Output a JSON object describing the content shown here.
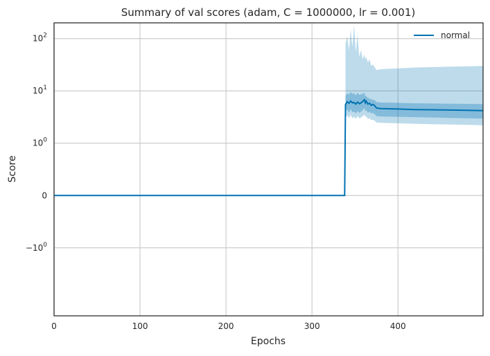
{
  "chart_data": {
    "type": "line",
    "title": "Summary of val scores (adam, C = 1000000, lr = 0.001)",
    "xlabel": "Epochs",
    "ylabel": "Score",
    "xlim": [
      0,
      499
    ],
    "y_scale": "symlog",
    "y_linthresh": 1,
    "ylim": [
      -20,
      200
    ],
    "x_ticks": [
      0,
      100,
      200,
      300,
      400
    ],
    "y_ticks": [
      {
        "value": 100,
        "label": "10",
        "sup": "2"
      },
      {
        "value": 10,
        "label": "10",
        "sup": "1"
      },
      {
        "value": 1,
        "label": "10",
        "sup": "0"
      },
      {
        "value": 0,
        "label": "0",
        "sup": ""
      },
      {
        "value": -1,
        "label": "−10",
        "sup": "0"
      }
    ],
    "grid": true,
    "legend": {
      "position": "top-right",
      "entries": [
        "normal"
      ]
    },
    "series": [
      {
        "name": "normal",
        "color": "#0072B2",
        "band_color": "#0072B2",
        "x": [
          0,
          338,
          339,
          341,
          343,
          345,
          347,
          349,
          351,
          353,
          355,
          357,
          359,
          361,
          362,
          363,
          365,
          367,
          369,
          371,
          373,
          375,
          380,
          400,
          420,
          440,
          460,
          480,
          499
        ],
        "y": [
          0,
          0,
          5.5,
          6.2,
          5.8,
          6.4,
          5.9,
          6.0,
          5.6,
          6.1,
          5.7,
          5.9,
          6.3,
          6.8,
          5.9,
          6.4,
          5.6,
          5.8,
          5.3,
          5.5,
          5.2,
          4.7,
          4.6,
          4.5,
          4.4,
          4.35,
          4.3,
          4.25,
          4.2
        ],
        "inner_upper": [
          0,
          0,
          8,
          9,
          8.5,
          9.5,
          8.8,
          9,
          8.2,
          9.2,
          8.4,
          8.6,
          8.8,
          9.2,
          7.8,
          8,
          7.4,
          7.2,
          6.9,
          6.8,
          6.6,
          6.1,
          6,
          5.9,
          5.8,
          5.75,
          5.7,
          5.65,
          5.6
        ],
        "inner_lower": [
          0,
          0,
          4.2,
          4.4,
          3.8,
          4.5,
          3.9,
          4,
          3.7,
          4.1,
          3.8,
          4,
          4.3,
          4.7,
          4.1,
          4.3,
          3.8,
          4,
          3.7,
          3.8,
          3.6,
          3.3,
          3.25,
          3.2,
          3.15,
          3.1,
          3.05,
          3.0,
          2.95
        ],
        "outer_upper": [
          0,
          0,
          80,
          110,
          60,
          150,
          70,
          180,
          55,
          120,
          45,
          60,
          40,
          50,
          40,
          45,
          35,
          40,
          30,
          32,
          28,
          25,
          26,
          27,
          28,
          28.5,
          29,
          29.5,
          30
        ],
        "outer_lower": [
          0,
          0,
          3.2,
          3.4,
          3.0,
          3.5,
          3.0,
          3.2,
          2.9,
          3.3,
          3.0,
          3.1,
          3.3,
          3.5,
          3.2,
          3.3,
          2.9,
          3.0,
          2.8,
          2.8,
          2.7,
          2.5,
          2.45,
          2.4,
          2.35,
          2.3,
          2.28,
          2.25,
          2.2
        ]
      }
    ]
  }
}
